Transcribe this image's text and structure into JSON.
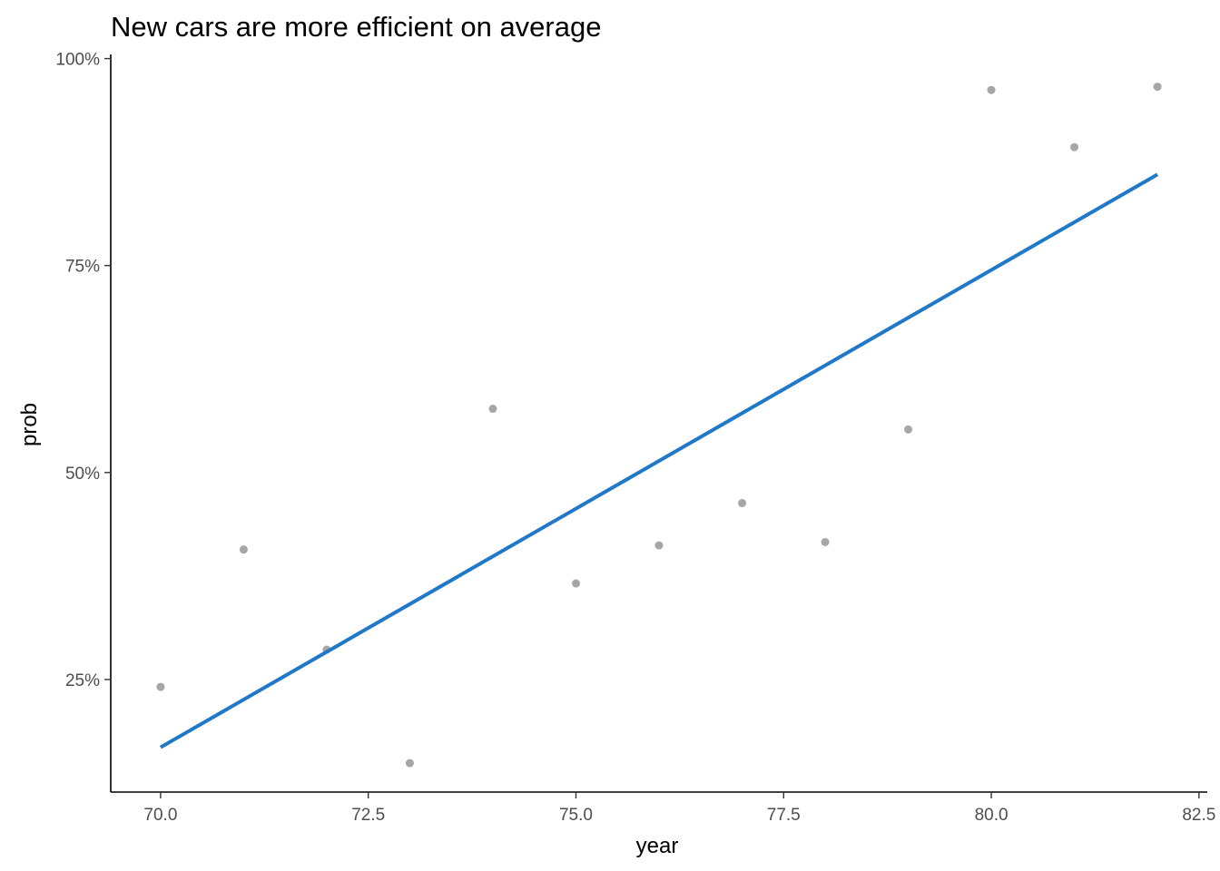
{
  "chart_data": {
    "type": "scatter",
    "title": "New cars are more efficient on average",
    "xlabel": "year",
    "ylabel": "prob",
    "xlim": [
      69.4,
      82.6
    ],
    "ylim": [
      0.114,
      1.005
    ],
    "x_ticks": [
      70.0,
      72.5,
      75.0,
      77.5,
      80.0,
      82.5
    ],
    "x_tick_labels": [
      "70.0",
      "72.5",
      "75.0",
      "77.5",
      "80.0",
      "82.5"
    ],
    "y_ticks": [
      0.25,
      0.5,
      0.75,
      1.0
    ],
    "y_tick_labels": [
      "25%",
      "50%",
      "75%",
      "100%"
    ],
    "grid": false,
    "series": [
      {
        "type": "scatter",
        "color": "#a6a6a6",
        "points": [
          {
            "x": 70,
            "y": 0.241
          },
          {
            "x": 71,
            "y": 0.407
          },
          {
            "x": 72,
            "y": 0.286
          },
          {
            "x": 73,
            "y": 0.149
          },
          {
            "x": 74,
            "y": 0.577
          },
          {
            "x": 75,
            "y": 0.366
          },
          {
            "x": 76,
            "y": 0.412
          },
          {
            "x": 77,
            "y": 0.463
          },
          {
            "x": 78,
            "y": 0.416
          },
          {
            "x": 79,
            "y": 0.552
          },
          {
            "x": 80,
            "y": 0.962
          },
          {
            "x": 81,
            "y": 0.893
          },
          {
            "x": 82,
            "y": 0.966
          }
        ]
      },
      {
        "type": "line",
        "color": "#1f78c8",
        "points": [
          {
            "x": 70,
            "y": 0.168
          },
          {
            "x": 82,
            "y": 0.86
          }
        ]
      }
    ]
  }
}
